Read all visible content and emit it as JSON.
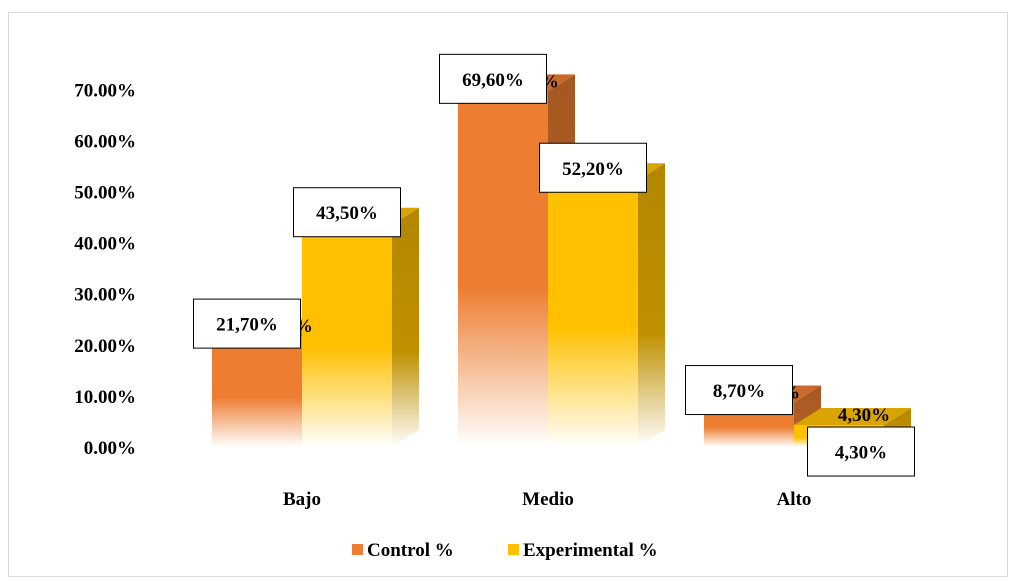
{
  "chart_data": {
    "type": "bar",
    "categories": [
      "Bajo",
      "Medio",
      "Alto"
    ],
    "series": [
      {
        "name": "Control %",
        "values": [
          21.7,
          69.6,
          8.7
        ],
        "labels": [
          "21,70%",
          "69,60%",
          "8,70%"
        ],
        "color": "#ed7d31"
      },
      {
        "name": "Experimental %",
        "values": [
          43.5,
          52.2,
          4.3
        ],
        "labels": [
          "43,50%",
          "52,20%",
          "4,30%"
        ],
        "color": "#ffc000"
      }
    ],
    "y_ticks": [
      "0.00%",
      "10.00%",
      "20.00%",
      "30.00%",
      "40.00%",
      "50.00%",
      "60.00%",
      "70.00%"
    ],
    "ylim": [
      0,
      80
    ],
    "legend_position": "bottom",
    "grid": false,
    "style": "3d-column"
  }
}
